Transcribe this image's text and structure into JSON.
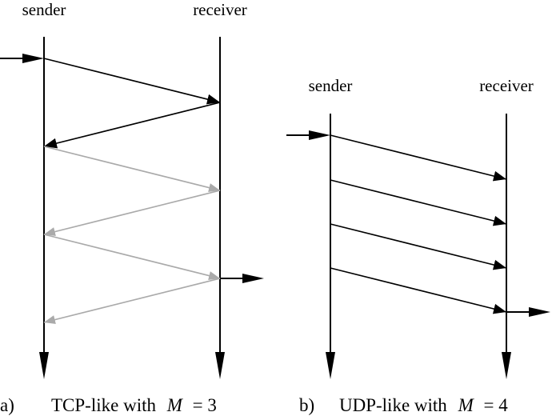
{
  "colors": {
    "line": "#000000",
    "faded": "#aaaaaa",
    "background": "#ffffff"
  },
  "panel_a": {
    "sender_label": "sender",
    "receiver_label": "receiver",
    "caption_marker": "a)",
    "caption_text": "TCP-like with",
    "caption_var": "M",
    "caption_eq": "= 3"
  },
  "panel_b": {
    "sender_label": "sender",
    "receiver_label": "receiver",
    "caption_marker": "b)",
    "caption_text": "UDP-like with",
    "caption_var": "M",
    "caption_eq": "= 4"
  }
}
